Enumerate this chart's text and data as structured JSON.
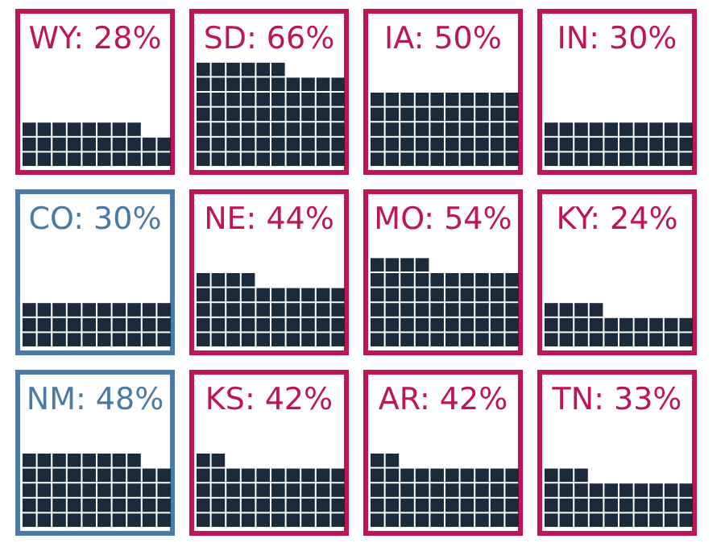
{
  "chart_data": [
    {
      "type": "other",
      "title": "WY:",
      "values": [
        28
      ],
      "value_labels": [
        "28%"
      ],
      "color": "#be1558"
    },
    {
      "type": "other",
      "title": "SD:",
      "values": [
        66
      ],
      "value_labels": [
        "66%"
      ],
      "color": "#be1558"
    },
    {
      "type": "other",
      "title": "IA:",
      "values": [
        50
      ],
      "value_labels": [
        "50%"
      ],
      "color": "#be1558"
    },
    {
      "type": "other",
      "title": "IN:",
      "values": [
        30
      ],
      "value_labels": [
        "30%"
      ],
      "color": "#be1558"
    },
    {
      "type": "other",
      "title": "CO:",
      "values": [
        30
      ],
      "value_labels": [
        "30%"
      ],
      "color": "#4a7aa6"
    },
    {
      "type": "other",
      "title": "NE:",
      "values": [
        44
      ],
      "value_labels": [
        "44%"
      ],
      "color": "#be1558"
    },
    {
      "type": "other",
      "title": "MO:",
      "values": [
        54
      ],
      "value_labels": [
        "54%"
      ],
      "color": "#be1558"
    },
    {
      "type": "other",
      "title": "KY:",
      "values": [
        24
      ],
      "value_labels": [
        "24%"
      ],
      "color": "#be1558"
    },
    {
      "type": "other",
      "title": "NM:",
      "values": [
        48
      ],
      "value_labels": [
        "48%"
      ],
      "color": "#4a7aa6"
    },
    {
      "type": "other",
      "title": "KS:",
      "values": [
        42
      ],
      "value_labels": [
        "42%"
      ],
      "color": "#be1558"
    },
    {
      "type": "other",
      "title": "AR:",
      "values": [
        42
      ],
      "value_labels": [
        "42%"
      ],
      "color": "#be1558"
    },
    {
      "type": "other",
      "title": "TN:",
      "values": [
        33
      ],
      "value_labels": [
        "33%"
      ],
      "color": "#be1558"
    }
  ]
}
